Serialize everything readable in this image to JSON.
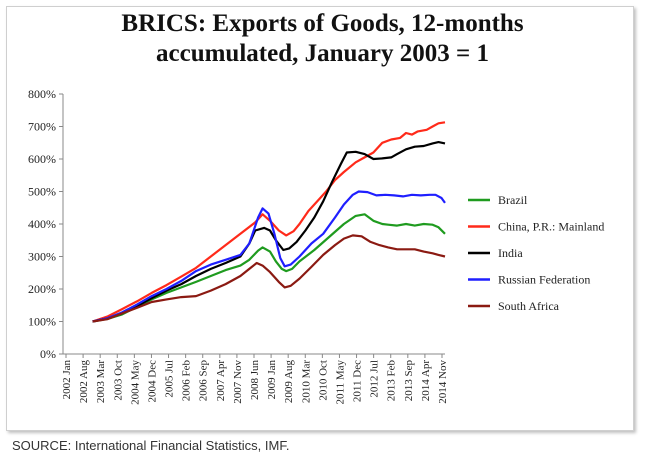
{
  "chart_data": {
    "type": "line",
    "title_line1": "BRICS: Exports of Goods, 12-months",
    "title_line2": "accumulated, January 2003 = 1",
    "xlabel": "",
    "ylabel": "",
    "ylim": [
      0,
      800
    ],
    "y_ticks": [
      "0%",
      "100%",
      "200%",
      "300%",
      "400%",
      "500%",
      "600%",
      "700%",
      "800%"
    ],
    "x_tick_labels": [
      "2002 Jan",
      "2002 Aug",
      "2003 Mar",
      "2003 Oct",
      "2004 May",
      "2004 Dec",
      "2005 Jul",
      "2006 Feb",
      "2006 Sep",
      "2007 Apr",
      "2007 Nov",
      "2008 Jun",
      "2009 Jan",
      "2009 Aug",
      "2010 Mar",
      "2010 Oct",
      "2011 May",
      "2011 Dec",
      "2012 Jul",
      "2013 Feb",
      "2013 Sep",
      "2014 Apr",
      "2014 Nov"
    ],
    "x_range": [
      2002.0,
      2014.92
    ],
    "grid": false,
    "legend_position": "right",
    "series": [
      {
        "name": "Brazil",
        "color": "#1f9b1f",
        "points": [
          [
            2003.0,
            100
          ],
          [
            2003.5,
            108
          ],
          [
            2004.0,
            122
          ],
          [
            2004.5,
            145
          ],
          [
            2005.0,
            168
          ],
          [
            2005.5,
            188
          ],
          [
            2006.0,
            205
          ],
          [
            2006.5,
            222
          ],
          [
            2007.0,
            240
          ],
          [
            2007.5,
            258
          ],
          [
            2008.0,
            272
          ],
          [
            2008.3,
            290
          ],
          [
            2008.6,
            318
          ],
          [
            2008.75,
            328
          ],
          [
            2009.0,
            315
          ],
          [
            2009.2,
            285
          ],
          [
            2009.4,
            262
          ],
          [
            2009.55,
            255
          ],
          [
            2009.75,
            262
          ],
          [
            2010.0,
            285
          ],
          [
            2010.5,
            320
          ],
          [
            2011.0,
            360
          ],
          [
            2011.5,
            400
          ],
          [
            2011.9,
            425
          ],
          [
            2012.2,
            430
          ],
          [
            2012.5,
            410
          ],
          [
            2012.8,
            400
          ],
          [
            2013.0,
            398
          ],
          [
            2013.3,
            395
          ],
          [
            2013.6,
            400
          ],
          [
            2013.9,
            395
          ],
          [
            2014.2,
            400
          ],
          [
            2014.5,
            398
          ],
          [
            2014.7,
            390
          ],
          [
            2014.92,
            370
          ]
        ]
      },
      {
        "name": "China, P.R.: Mainland",
        "color": "#ff2a1a",
        "points": [
          [
            2003.0,
            100
          ],
          [
            2003.5,
            115
          ],
          [
            2004.0,
            138
          ],
          [
            2004.5,
            162
          ],
          [
            2005.0,
            188
          ],
          [
            2005.5,
            212
          ],
          [
            2006.0,
            238
          ],
          [
            2006.5,
            265
          ],
          [
            2007.0,
            300
          ],
          [
            2007.5,
            335
          ],
          [
            2008.0,
            370
          ],
          [
            2008.5,
            405
          ],
          [
            2008.75,
            430
          ],
          [
            2009.0,
            410
          ],
          [
            2009.3,
            380
          ],
          [
            2009.55,
            365
          ],
          [
            2009.8,
            378
          ],
          [
            2010.0,
            400
          ],
          [
            2010.3,
            440
          ],
          [
            2010.6,
            470
          ],
          [
            2010.9,
            500
          ],
          [
            2011.2,
            535
          ],
          [
            2011.5,
            560
          ],
          [
            2011.9,
            590
          ],
          [
            2012.2,
            605
          ],
          [
            2012.5,
            620
          ],
          [
            2012.8,
            650
          ],
          [
            2013.1,
            660
          ],
          [
            2013.4,
            665
          ],
          [
            2013.6,
            680
          ],
          [
            2013.8,
            675
          ],
          [
            2014.0,
            685
          ],
          [
            2014.3,
            690
          ],
          [
            2014.5,
            700
          ],
          [
            2014.7,
            710
          ],
          [
            2014.92,
            713
          ]
        ]
      },
      {
        "name": "India",
        "color": "#000000",
        "points": [
          [
            2003.0,
            100
          ],
          [
            2003.5,
            110
          ],
          [
            2004.0,
            125
          ],
          [
            2004.5,
            147
          ],
          [
            2005.0,
            172
          ],
          [
            2005.5,
            195
          ],
          [
            2006.0,
            215
          ],
          [
            2006.5,
            240
          ],
          [
            2007.0,
            262
          ],
          [
            2007.5,
            280
          ],
          [
            2008.0,
            300
          ],
          [
            2008.3,
            340
          ],
          [
            2008.5,
            380
          ],
          [
            2008.8,
            388
          ],
          [
            2009.0,
            380
          ],
          [
            2009.2,
            350
          ],
          [
            2009.45,
            320
          ],
          [
            2009.65,
            325
          ],
          [
            2009.9,
            345
          ],
          [
            2010.2,
            380
          ],
          [
            2010.5,
            420
          ],
          [
            2010.8,
            470
          ],
          [
            2011.1,
            530
          ],
          [
            2011.4,
            585
          ],
          [
            2011.6,
            620
          ],
          [
            2011.9,
            622
          ],
          [
            2012.2,
            615
          ],
          [
            2012.5,
            600
          ],
          [
            2012.8,
            602
          ],
          [
            2013.1,
            605
          ],
          [
            2013.3,
            615
          ],
          [
            2013.6,
            630
          ],
          [
            2013.9,
            638
          ],
          [
            2014.2,
            640
          ],
          [
            2014.5,
            648
          ],
          [
            2014.7,
            652
          ],
          [
            2014.92,
            648
          ]
        ]
      },
      {
        "name": "Russian Federation",
        "color": "#1f1fff",
        "points": [
          [
            2003.0,
            100
          ],
          [
            2003.5,
            110
          ],
          [
            2004.0,
            128
          ],
          [
            2004.5,
            152
          ],
          [
            2005.0,
            178
          ],
          [
            2005.5,
            200
          ],
          [
            2006.0,
            225
          ],
          [
            2006.5,
            255
          ],
          [
            2007.0,
            275
          ],
          [
            2007.5,
            290
          ],
          [
            2008.0,
            305
          ],
          [
            2008.3,
            340
          ],
          [
            2008.6,
            420
          ],
          [
            2008.75,
            448
          ],
          [
            2008.95,
            432
          ],
          [
            2009.15,
            370
          ],
          [
            2009.35,
            295
          ],
          [
            2009.5,
            270
          ],
          [
            2009.7,
            275
          ],
          [
            2010.0,
            300
          ],
          [
            2010.4,
            340
          ],
          [
            2010.8,
            370
          ],
          [
            2011.2,
            420
          ],
          [
            2011.5,
            460
          ],
          [
            2011.8,
            490
          ],
          [
            2012.0,
            500
          ],
          [
            2012.3,
            498
          ],
          [
            2012.6,
            488
          ],
          [
            2012.9,
            490
          ],
          [
            2013.2,
            488
          ],
          [
            2013.5,
            485
          ],
          [
            2013.8,
            490
          ],
          [
            2014.1,
            488
          ],
          [
            2014.4,
            490
          ],
          [
            2014.6,
            490
          ],
          [
            2014.8,
            480
          ],
          [
            2014.92,
            465
          ]
        ]
      },
      {
        "name": "South Africa",
        "color": "#8b1a12",
        "points": [
          [
            2003.0,
            100
          ],
          [
            2003.5,
            107
          ],
          [
            2004.0,
            125
          ],
          [
            2004.5,
            142
          ],
          [
            2005.0,
            160
          ],
          [
            2005.5,
            168
          ],
          [
            2006.0,
            175
          ],
          [
            2006.5,
            178
          ],
          [
            2007.0,
            195
          ],
          [
            2007.5,
            215
          ],
          [
            2008.0,
            240
          ],
          [
            2008.3,
            262
          ],
          [
            2008.55,
            280
          ],
          [
            2008.75,
            272
          ],
          [
            2009.0,
            252
          ],
          [
            2009.3,
            222
          ],
          [
            2009.5,
            205
          ],
          [
            2009.7,
            210
          ],
          [
            2010.0,
            232
          ],
          [
            2010.4,
            268
          ],
          [
            2010.8,
            305
          ],
          [
            2011.2,
            335
          ],
          [
            2011.5,
            355
          ],
          [
            2011.8,
            365
          ],
          [
            2012.1,
            362
          ],
          [
            2012.4,
            345
          ],
          [
            2012.7,
            335
          ],
          [
            2013.0,
            328
          ],
          [
            2013.3,
            322
          ],
          [
            2013.6,
            322
          ],
          [
            2013.9,
            322
          ],
          [
            2014.2,
            315
          ],
          [
            2014.5,
            310
          ],
          [
            2014.7,
            305
          ],
          [
            2014.92,
            300
          ]
        ]
      }
    ]
  },
  "source": "SOURCE: International Financial Statistics, IMF."
}
